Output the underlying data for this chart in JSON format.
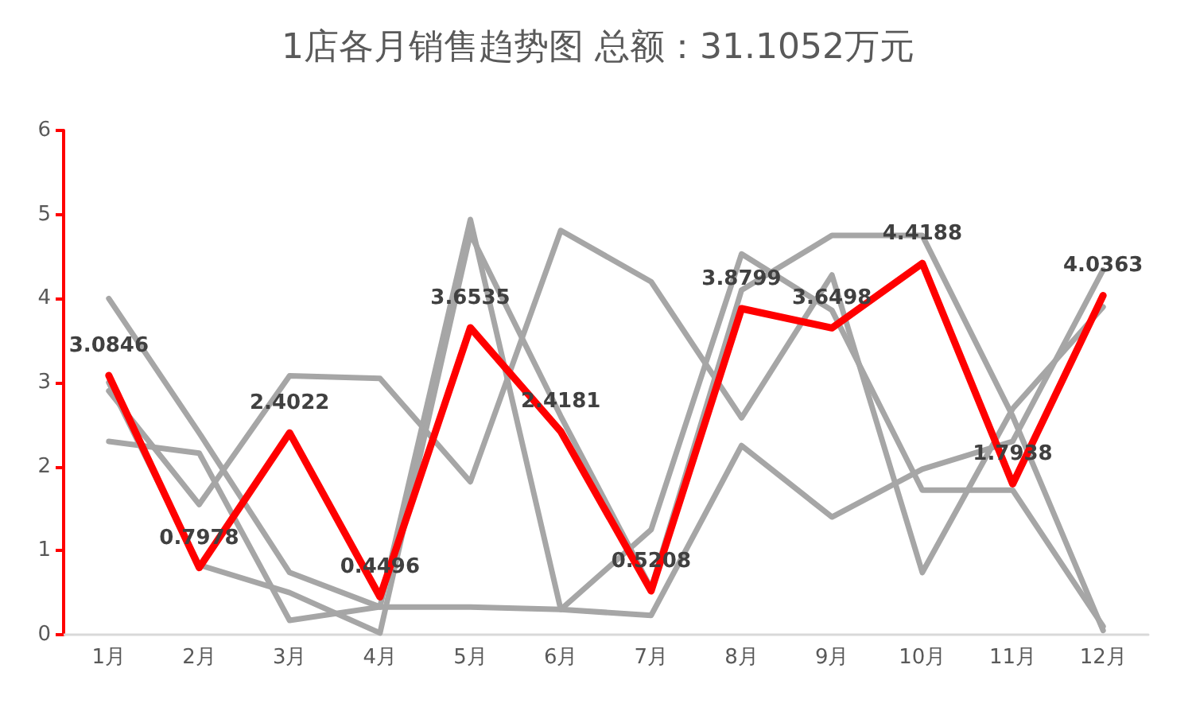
{
  "chart_data": {
    "type": "line",
    "title": "1店各月销售趋势图 总额：31.1052万元",
    "categories": [
      "1月",
      "2月",
      "3月",
      "4月",
      "5月",
      "6月",
      "7月",
      "8月",
      "9月",
      "10月",
      "11月",
      "12月"
    ],
    "ylim": [
      0,
      6
    ],
    "yticks": [
      0,
      1,
      2,
      3,
      4,
      5,
      6
    ],
    "grid": false,
    "marker": "none",
    "line_style": "solid",
    "series": [
      {
        "color": "#a6a6a6",
        "values": [
          4.0,
          2.4,
          0.74,
          0.33,
          4.94,
          0.3,
          1.25,
          4.53,
          3.86,
          1.72,
          1.72,
          0.1
        ]
      },
      {
        "color": "#a6a6a6",
        "values": [
          2.9,
          1.55,
          3.08,
          3.05,
          1.82,
          4.81,
          4.2,
          2.58,
          4.28,
          0.74,
          2.69,
          3.9
        ]
      },
      {
        "color": "#a6a6a6",
        "values": [
          2.3,
          2.16,
          0.17,
          0.33,
          0.33,
          0.3,
          0.23,
          2.25,
          1.4,
          1.97,
          2.3,
          4.34
        ]
      },
      {
        "color": "#a6a6a6",
        "values": [
          3.0,
          0.83,
          0.5,
          0.02,
          4.77,
          2.6,
          0.55,
          4.1,
          4.75,
          4.75,
          2.6,
          0.05
        ]
      },
      {
        "color": "#ff0000",
        "values": [
          3.0846,
          0.7978,
          2.4022,
          0.4496,
          3.6535,
          2.4181,
          0.5208,
          3.8799,
          3.6498,
          4.4188,
          1.7938,
          4.0363
        ],
        "value_labels": [
          "3.0846",
          "0.7978",
          "2.4022",
          "0.4496",
          "3.6535",
          "2.4181",
          "0.5208",
          "3.8799",
          "3.6498",
          "4.4188",
          "1.7938",
          "4.0363"
        ]
      }
    ]
  }
}
